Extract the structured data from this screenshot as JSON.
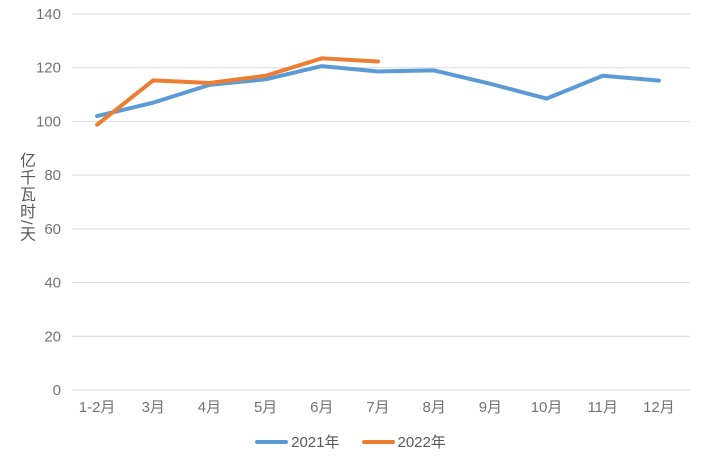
{
  "chart_data": {
    "type": "line",
    "title": "",
    "xlabel": "",
    "ylabel": "亿千瓦时/天",
    "ylim": [
      0,
      140
    ],
    "ytick_step": 20,
    "grid": "horizontal-only",
    "legend_position": "bottom-center",
    "categories": [
      "1-2月",
      "3月",
      "4月",
      "5月",
      "6月",
      "7月",
      "8月",
      "9月",
      "10月",
      "11月",
      "12月"
    ],
    "series": [
      {
        "name": "2021年",
        "color": "#5B9BD5",
        "values": [
          102,
          107,
          113.6,
          115.7,
          120.6,
          118.6,
          119,
          114,
          108.5,
          117,
          115.2
        ]
      },
      {
        "name": "2022年",
        "color": "#ED7D31",
        "values": [
          98.8,
          115.3,
          114.3,
          117,
          123.5,
          122.3
        ]
      }
    ],
    "colors": {
      "gridline": "#D9D9D9",
      "tick_label": "#737373",
      "axis_title": "#595959",
      "legend_text": "#595959",
      "background": "#FFFFFF"
    }
  }
}
